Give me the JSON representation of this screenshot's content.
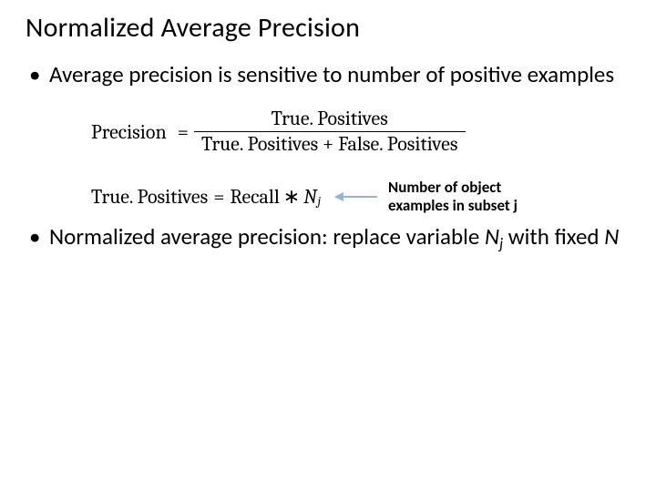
{
  "title": "Normalized Average Precision",
  "bullet1": "Average precision is sensitive to number of positive examples",
  "formula": {
    "precision_label": "Precision",
    "equals": "=",
    "numerator": "True. Positives",
    "den_left": "True. Positives",
    "den_plus": "+",
    "den_right": "False. Positives",
    "tp_label": "True. Positives",
    "recall_label": "Recall",
    "star": "∗",
    "N": "N",
    "j": "j"
  },
  "annotation": "Number of object examples in subset j",
  "bullet2_prefix": "Normalized average precision: replace variable ",
  "bullet2_Nj_N": "N",
  "bullet2_Nj_j": "j",
  "bullet2_mid": " with fixed ",
  "bullet2_N": "N",
  "colors": {
    "text": "#000000",
    "background": "#ffffff",
    "arrow": "#95b3d7"
  }
}
